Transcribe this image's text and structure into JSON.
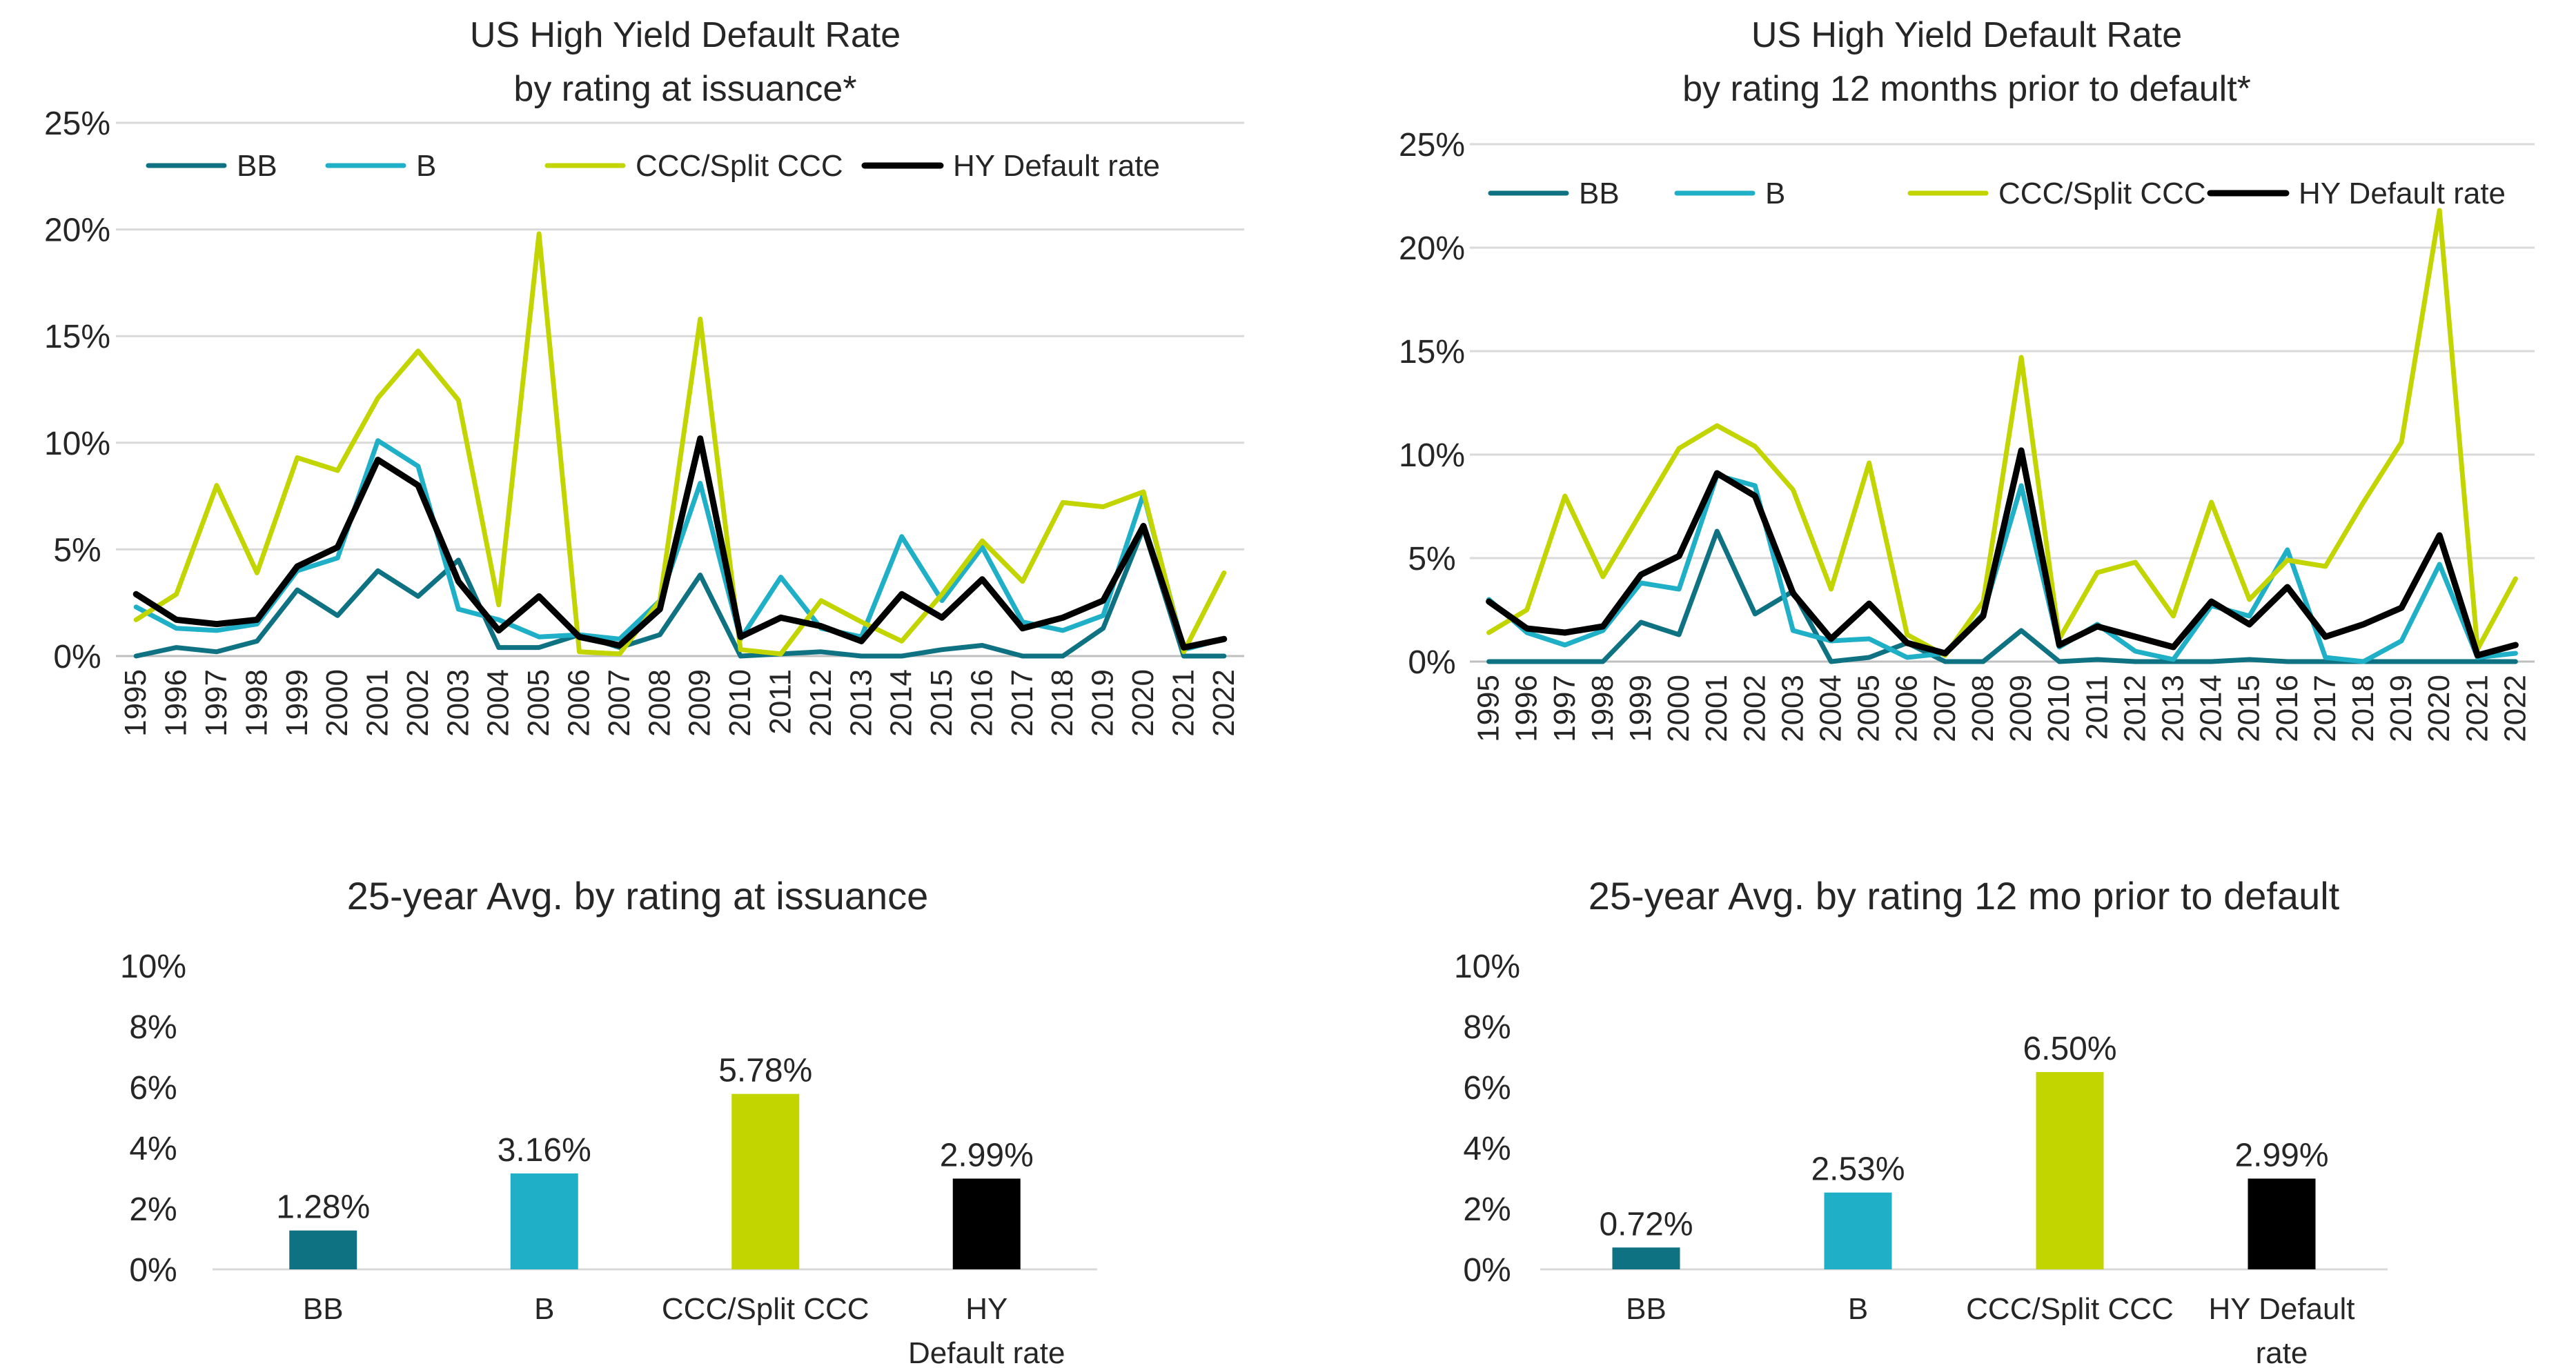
{
  "colors": {
    "BB": "#0e7282",
    "B": "#1fb0c8",
    "CCC/Split CCC": "#c2d500",
    "HY Default rate": "#000000",
    "grid": "#d9d9d9",
    "text": "#262626"
  },
  "chart_data": [
    {
      "type": "line",
      "title": "US High Yield Default Rate",
      "subtitle": "by rating at issuance*",
      "x": [
        "1995",
        "1996",
        "1997",
        "1998",
        "1999",
        "2000",
        "2001",
        "2002",
        "2003",
        "2004",
        "2005",
        "2006",
        "2007",
        "2008",
        "2009",
        "2010",
        "2011",
        "2012",
        "2013",
        "2014",
        "2015",
        "2016",
        "2017",
        "2018",
        "2019",
        "2020",
        "2021",
        "2022"
      ],
      "ylim": [
        0,
        25
      ],
      "yticks": [
        "0%",
        "5%",
        "10%",
        "15%",
        "20%",
        "25%"
      ],
      "grid": true,
      "legend": "top",
      "series": [
        {
          "name": "BB",
          "values": [
            0.0,
            0.4,
            0.2,
            0.7,
            3.1,
            1.9,
            4.0,
            2.8,
            4.5,
            0.4,
            0.4,
            1.0,
            0.4,
            1.0,
            3.8,
            0.0,
            0.1,
            0.2,
            0.0,
            0.0,
            0.3,
            0.5,
            0.0,
            0.0,
            1.3,
            6.0,
            0.0,
            0.0
          ]
        },
        {
          "name": "B",
          "values": [
            2.3,
            1.3,
            1.2,
            1.5,
            4.0,
            4.6,
            10.1,
            8.9,
            2.2,
            1.7,
            0.9,
            1.0,
            0.8,
            2.6,
            8.1,
            0.8,
            3.7,
            1.3,
            0.9,
            5.6,
            2.6,
            5.1,
            1.6,
            1.2,
            1.9,
            7.6,
            0.3,
            0.8
          ]
        },
        {
          "name": "CCC/Split CCC",
          "values": [
            1.7,
            2.9,
            8.0,
            3.9,
            9.3,
            8.7,
            12.1,
            14.3,
            12.0,
            2.4,
            19.8,
            0.2,
            0.1,
            2.6,
            15.8,
            0.3,
            0.1,
            2.6,
            1.6,
            0.7,
            2.9,
            5.4,
            3.5,
            7.2,
            7.0,
            7.7,
            0.2,
            3.9
          ]
        },
        {
          "name": "HY Default rate",
          "values": [
            2.9,
            1.7,
            1.5,
            1.7,
            4.2,
            5.1,
            9.2,
            8.0,
            3.5,
            1.2,
            2.8,
            0.9,
            0.5,
            2.2,
            10.2,
            0.9,
            1.8,
            1.4,
            0.7,
            2.9,
            1.8,
            3.6,
            1.3,
            1.8,
            2.6,
            6.1,
            0.4,
            0.8
          ]
        }
      ]
    },
    {
      "type": "line",
      "title": "US High Yield Default Rate",
      "subtitle": "by rating 12 months prior to default*",
      "x": [
        "1995",
        "1996",
        "1997",
        "1998",
        "1999",
        "2000",
        "2001",
        "2002",
        "2003",
        "2004",
        "2005",
        "2006",
        "2007",
        "2008",
        "2009",
        "2010",
        "2011",
        "2012",
        "2013",
        "2014",
        "2015",
        "2016",
        "2017",
        "2018",
        "2019",
        "2020",
        "2021",
        "2022"
      ],
      "ylim": [
        0,
        25
      ],
      "yticks": [
        "0%",
        "5%",
        "10%",
        "15%",
        "20%",
        "25%"
      ],
      "grid": true,
      "legend": "top",
      "series": [
        {
          "name": "BB",
          "values": [
            0.0,
            0.0,
            0.0,
            0.0,
            1.9,
            1.3,
            6.3,
            2.3,
            3.4,
            0.0,
            0.2,
            0.9,
            0.0,
            0.0,
            1.5,
            0.0,
            0.1,
            0.0,
            0.0,
            0.0,
            0.1,
            0.0,
            0.0,
            0.0,
            0.0,
            0.0,
            0.0,
            0.0
          ]
        },
        {
          "name": "B",
          "values": [
            3.0,
            1.4,
            0.8,
            1.5,
            3.8,
            3.5,
            9.0,
            8.5,
            1.5,
            1.0,
            1.1,
            0.2,
            0.4,
            2.3,
            8.5,
            0.7,
            1.8,
            0.5,
            0.1,
            2.7,
            2.2,
            5.4,
            0.2,
            0.0,
            1.0,
            4.7,
            0.2,
            0.4
          ]
        },
        {
          "name": "CCC/Split CCC",
          "values": [
            1.4,
            2.5,
            8.0,
            4.1,
            7.2,
            10.3,
            11.4,
            10.4,
            8.3,
            3.5,
            9.6,
            1.3,
            0.3,
            2.9,
            14.7,
            1.1,
            4.3,
            4.8,
            2.2,
            7.7,
            3.0,
            4.9,
            4.6,
            7.7,
            10.6,
            21.8,
            0.6,
            4.0
          ]
        },
        {
          "name": "HY Default rate",
          "values": [
            2.9,
            1.6,
            1.4,
            1.7,
            4.2,
            5.1,
            9.1,
            8.0,
            3.3,
            1.1,
            2.8,
            0.9,
            0.4,
            2.2,
            10.2,
            0.8,
            1.7,
            1.2,
            0.7,
            2.9,
            1.8,
            3.6,
            1.2,
            1.8,
            2.6,
            6.1,
            0.3,
            0.8
          ]
        }
      ]
    },
    {
      "type": "bar",
      "title": "25-year Avg. by rating at issuance",
      "categories": [
        "BB",
        "B",
        "CCC/Split CCC",
        "HY\nDefault rate"
      ],
      "values": [
        1.28,
        3.16,
        5.78,
        2.99
      ],
      "data_labels": [
        "1.28%",
        "3.16%",
        "5.78%",
        "2.99%"
      ],
      "ylim": [
        0,
        10
      ],
      "yticks": [
        "0%",
        "2%",
        "4%",
        "6%",
        "8%",
        "10%"
      ],
      "grid": false
    },
    {
      "type": "bar",
      "title": "25-year Avg. by rating 12 mo prior to default",
      "categories": [
        "BB",
        "B",
        "CCC/Split CCC",
        "HY Default\nrate"
      ],
      "values": [
        0.72,
        2.53,
        6.5,
        2.99
      ],
      "data_labels": [
        "0.72%",
        "2.53%",
        "6.50%",
        "2.99%"
      ],
      "ylim": [
        0,
        10
      ],
      "yticks": [
        "0%",
        "2%",
        "4%",
        "6%",
        "8%",
        "10%"
      ],
      "grid": false
    }
  ]
}
